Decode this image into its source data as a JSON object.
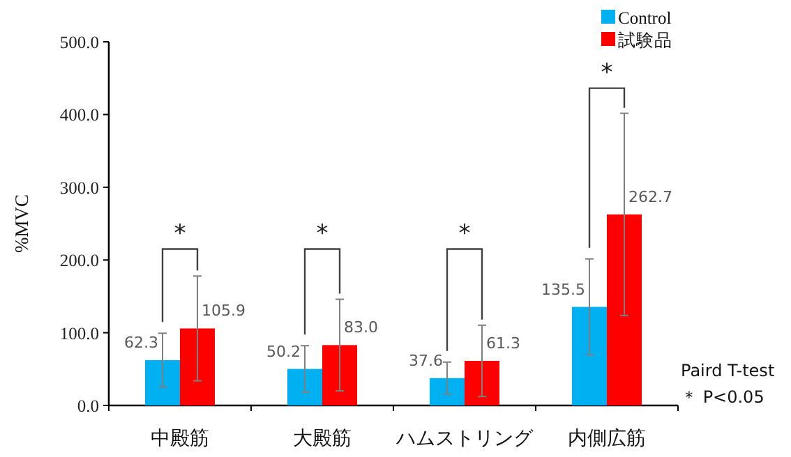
{
  "chart_data": {
    "type": "bar",
    "ylabel": "%MVC",
    "categories": [
      "中殿筋",
      "大殿筋",
      "ハムストリング",
      "内側広筋"
    ],
    "series": [
      {
        "name": "Control",
        "color": "#00b0f0",
        "values": [
          62.3,
          50.2,
          37.6,
          135.5
        ],
        "errors": [
          37,
          32,
          22,
          66
        ],
        "value_labels": [
          "62.3",
          "50.2",
          "37.6",
          "135.5"
        ]
      },
      {
        "name": "試験品",
        "color": "#ff0000",
        "values": [
          105.9,
          83.0,
          61.3,
          262.7
        ],
        "errors": [
          72,
          63,
          49,
          139
        ],
        "value_labels": [
          "105.9",
          "83.0",
          "61.3",
          "262.7"
        ]
      }
    ],
    "ylim": [
      0,
      500
    ],
    "yticks": [
      {
        "value": 0,
        "label": "0.0"
      },
      {
        "value": 100,
        "label": "100.0"
      },
      {
        "value": 200,
        "label": "200.0"
      },
      {
        "value": 300,
        "label": "300.0"
      },
      {
        "value": 400,
        "label": "400.0"
      },
      {
        "value": 500,
        "label": "500.0"
      }
    ],
    "legend": "top right",
    "grid": false,
    "annotations": [
      "*",
      "*",
      "*",
      "*",
      "Paird T-test",
      "＊ P<0.05"
    ]
  }
}
